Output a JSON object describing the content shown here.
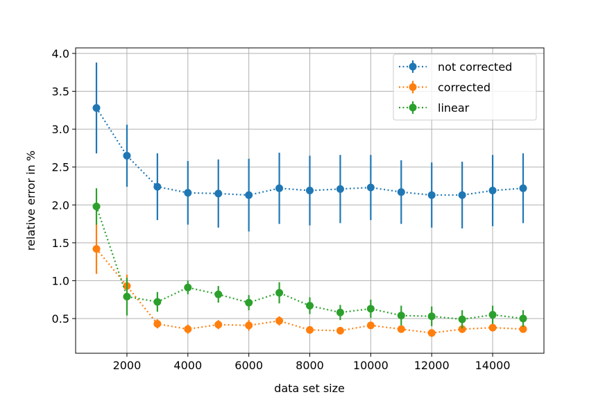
{
  "chart_data": {
    "type": "errorbar",
    "x_label": "data set size",
    "y_label": "relative error in %",
    "x": [
      1000,
      2000,
      3000,
      4000,
      5000,
      6000,
      7000,
      8000,
      9000,
      10000,
      11000,
      12000,
      13000,
      14000,
      15000
    ],
    "series": [
      {
        "name": "not corrected",
        "color": "#1f77b4",
        "values": [
          3.28,
          2.65,
          2.24,
          2.16,
          2.15,
          2.13,
          2.22,
          2.19,
          2.21,
          2.23,
          2.17,
          2.13,
          2.13,
          2.19,
          2.22
        ],
        "errors": [
          0.6,
          0.41,
          0.44,
          0.42,
          0.45,
          0.48,
          0.47,
          0.46,
          0.45,
          0.43,
          0.42,
          0.43,
          0.44,
          0.47,
          0.46
        ]
      },
      {
        "name": "corrected",
        "color": "#ff7f0e",
        "values": [
          1.42,
          0.93,
          0.43,
          0.36,
          0.42,
          0.41,
          0.47,
          0.35,
          0.34,
          0.41,
          0.36,
          0.31,
          0.36,
          0.38,
          0.36
        ],
        "errors": [
          0.33,
          0.15,
          0.06,
          0.06,
          0.06,
          0.07,
          0.06,
          0.05,
          0.05,
          0.05,
          0.04,
          0.05,
          0.05,
          0.05,
          0.04
        ]
      },
      {
        "name": "linear",
        "color": "#2ca02c",
        "values": [
          1.98,
          0.79,
          0.72,
          0.91,
          0.82,
          0.71,
          0.84,
          0.67,
          0.58,
          0.63,
          0.54,
          0.53,
          0.49,
          0.55,
          0.5
        ],
        "errors": [
          0.24,
          0.25,
          0.13,
          0.09,
          0.11,
          0.1,
          0.14,
          0.11,
          0.1,
          0.12,
          0.13,
          0.13,
          0.12,
          0.12,
          0.11
        ]
      }
    ],
    "xlim": [
      317,
      15683
    ],
    "ylim": [
      0.042,
      4.073
    ],
    "xticks": [
      2000,
      4000,
      6000,
      8000,
      10000,
      12000,
      14000
    ],
    "yticks": [
      0.5,
      {
        "value": 1.0,
        "label": "1.0"
      },
      1.5,
      {
        "value": 2.0,
        "label": "2.0"
      },
      2.5,
      {
        "value": 3.0,
        "label": "3.0"
      },
      3.5,
      {
        "value": 4.0,
        "label": "4.0"
      }
    ],
    "grid": true,
    "legend": "upper right"
  }
}
